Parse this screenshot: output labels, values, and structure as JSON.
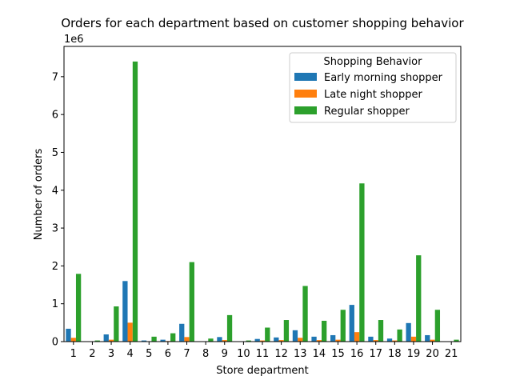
{
  "chart_data": {
    "type": "bar",
    "title": "Orders for each department based on customer shopping behavior",
    "xlabel": "Store department",
    "ylabel": "Number of orders",
    "y_scale_label": "1e6",
    "ylim": [
      0,
      7.8
    ],
    "yticks": [
      "0",
      "1",
      "2",
      "3",
      "4",
      "5",
      "6",
      "7"
    ],
    "grid": false,
    "legend_title": "Shopping Behavior",
    "legend_placement": "top-right",
    "categories": [
      "1",
      "2",
      "3",
      "4",
      "5",
      "6",
      "7",
      "8",
      "9",
      "10",
      "11",
      "12",
      "13",
      "14",
      "15",
      "16",
      "17",
      "18",
      "19",
      "20",
      "21"
    ],
    "series": [
      {
        "name": "Early morning shopper",
        "color": "#1f77b4",
        "values": [
          0.34,
          0.01,
          0.19,
          1.6,
          0.03,
          0.05,
          0.47,
          0.01,
          0.12,
          0.01,
          0.07,
          0.11,
          0.3,
          0.13,
          0.17,
          0.97,
          0.13,
          0.08,
          0.49,
          0.17,
          0.01
        ]
      },
      {
        "name": "Late night shopper",
        "color": "#ff7f0e",
        "values": [
          0.1,
          0.005,
          0.05,
          0.5,
          0.01,
          0.015,
          0.12,
          0.005,
          0.04,
          0.005,
          0.03,
          0.04,
          0.1,
          0.04,
          0.05,
          0.25,
          0.04,
          0.03,
          0.13,
          0.05,
          0.005
        ]
      },
      {
        "name": "Regular shopper",
        "color": "#2ca02c",
        "values": [
          1.79,
          0.03,
          0.93,
          7.4,
          0.13,
          0.22,
          2.1,
          0.08,
          0.7,
          0.03,
          0.37,
          0.57,
          1.47,
          0.55,
          0.84,
          4.18,
          0.57,
          0.32,
          2.28,
          0.84,
          0.05
        ]
      }
    ]
  }
}
